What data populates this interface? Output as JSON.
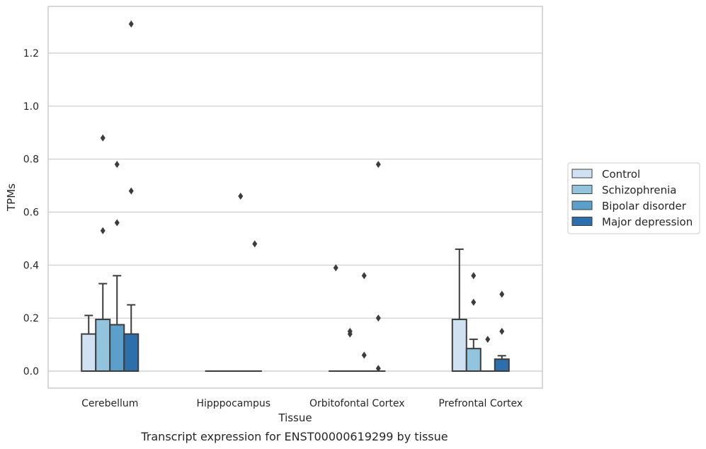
{
  "caption": "Transcript expression for ENST00000619299 by tissue",
  "chart_data": {
    "type": "boxplot",
    "xlabel": "Tissue",
    "ylabel": "TPMs",
    "ylim": [
      -0.065,
      1.38
    ],
    "yticks": [
      0.0,
      0.2,
      0.4,
      0.6,
      0.8,
      1.0,
      1.2
    ],
    "ytick_labels": [
      "0.0",
      "0.2",
      "0.4",
      "0.6",
      "0.8",
      "1.0",
      "1.2"
    ],
    "grid": "horizontal",
    "legend_position": "right",
    "categories": [
      "Cerebellum",
      "Hipppocampus",
      "Orbitofontal Cortex",
      "Prefrontal Cortex"
    ],
    "series": [
      {
        "name": "Control",
        "color": "#cfe1f2",
        "boxes": [
          {
            "q1": 0,
            "median": 0,
            "q3": 0.14,
            "whislo": 0,
            "whishi": 0.21,
            "fliers": []
          },
          {
            "q1": 0,
            "median": 0,
            "q3": 0,
            "whislo": 0,
            "whishi": 0,
            "fliers": []
          },
          {
            "q1": 0,
            "median": 0,
            "q3": 0,
            "whislo": 0,
            "whishi": 0,
            "fliers": [
              0.39
            ]
          },
          {
            "q1": 0,
            "median": 0,
            "q3": 0.195,
            "whislo": 0,
            "whishi": 0.46,
            "fliers": []
          }
        ]
      },
      {
        "name": "Schizophrenia",
        "color": "#93c4de",
        "boxes": [
          {
            "q1": 0,
            "median": 0,
            "q3": 0.195,
            "whislo": 0,
            "whishi": 0.33,
            "fliers": [
              0.53,
              0.88
            ]
          },
          {
            "q1": 0,
            "median": 0,
            "q3": 0,
            "whislo": 0,
            "whishi": 0,
            "fliers": []
          },
          {
            "q1": 0,
            "median": 0,
            "q3": 0,
            "whislo": 0,
            "whishi": 0,
            "fliers": [
              0.14,
              0.15
            ]
          },
          {
            "q1": 0,
            "median": 0,
            "q3": 0.085,
            "whislo": 0,
            "whishi": 0.12,
            "fliers": [
              0.26,
              0.36
            ]
          }
        ]
      },
      {
        "name": "Bipolar disorder",
        "color": "#5b9fcb",
        "boxes": [
          {
            "q1": 0,
            "median": 0,
            "q3": 0.175,
            "whislo": 0,
            "whishi": 0.36,
            "fliers": [
              0.56,
              0.78
            ]
          },
          {
            "q1": 0,
            "median": 0,
            "q3": 0,
            "whislo": 0,
            "whishi": 0,
            "fliers": [
              0.66
            ]
          },
          {
            "q1": 0,
            "median": 0,
            "q3": 0,
            "whislo": 0,
            "whishi": 0,
            "fliers": [
              0.06,
              0.36
            ]
          },
          {
            "q1": 0,
            "median": 0,
            "q3": 0,
            "whislo": 0,
            "whishi": 0,
            "fliers": [
              0.12
            ]
          }
        ]
      },
      {
        "name": "Major depression",
        "color": "#2d6fac",
        "boxes": [
          {
            "q1": 0,
            "median": 0,
            "q3": 0.14,
            "whislo": 0,
            "whishi": 0.25,
            "fliers": [
              0.68,
              1.31
            ]
          },
          {
            "q1": 0,
            "median": 0,
            "q3": 0,
            "whislo": 0,
            "whishi": 0,
            "fliers": [
              0.48
            ]
          },
          {
            "q1": 0,
            "median": 0,
            "q3": 0,
            "whislo": 0,
            "whishi": 0,
            "fliers": [
              0.01,
              0.2,
              0.78
            ]
          },
          {
            "q1": 0,
            "median": 0,
            "q3": 0.045,
            "whislo": 0,
            "whishi": 0.058,
            "fliers": [
              0.15,
              0.29
            ]
          }
        ]
      }
    ]
  }
}
